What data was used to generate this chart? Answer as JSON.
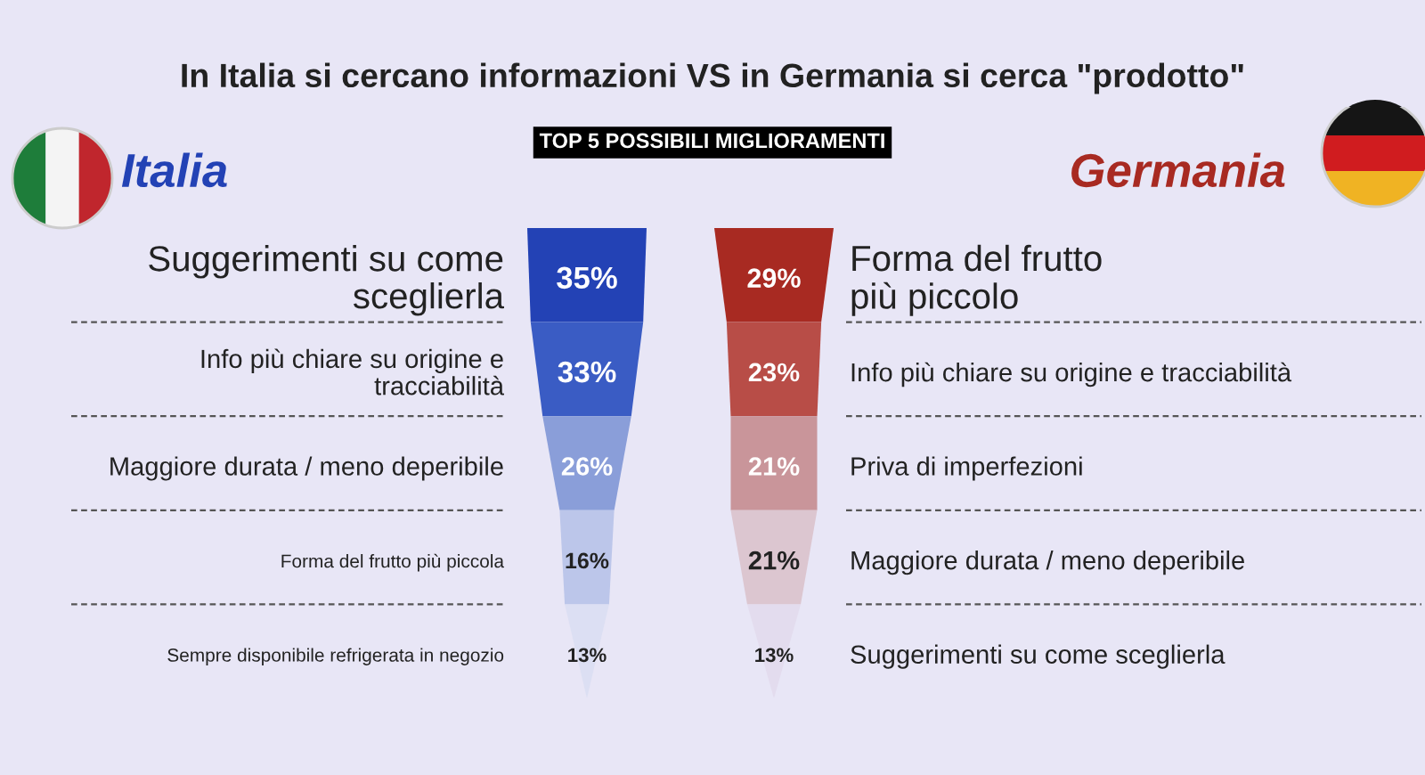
{
  "chart_data": [
    {
      "type": "other",
      "title": "In Italia si cercano informazioni VS in Germania si cerca \"prodotto\"",
      "subtitle": "TOP 5 POSSIBILI MIGLIORAMENTI"
    },
    {
      "type": "other",
      "title": "Italia",
      "categories": [
        "Suggerimenti su come\nsceglierla",
        "Info più chiare su origine e\ntracciabilità",
        "Maggiore durata / meno deperibile",
        "Forma del frutto più piccola",
        "Sempre disponibile refrigerata in negozio"
      ],
      "values": [
        35,
        33,
        26,
        16,
        13
      ],
      "value_labels": [
        "35%",
        "33%",
        "26%",
        "16%",
        "13%"
      ],
      "colors": [
        "#2342b5",
        "#3a5cc4",
        "#8a9ed9",
        "#bcc6ea",
        "#dcdff3"
      ]
    },
    {
      "type": "other",
      "title": "Germania",
      "categories": [
        "Forma del frutto\npiù piccolo",
        "Info più chiare su origine e tracciabilità",
        "Priva di imperfezioni",
        "Maggiore durata / meno deperibile",
        "Suggerimenti su come sceglierla"
      ],
      "values": [
        29,
        23,
        21,
        21,
        13
      ],
      "value_labels": [
        "29%",
        "23%",
        "21%",
        "21%",
        "13%"
      ],
      "colors": [
        "#a82a22",
        "#b84d47",
        "#c9959a",
        "#dcc6d0",
        "#e3dcee"
      ]
    }
  ]
}
